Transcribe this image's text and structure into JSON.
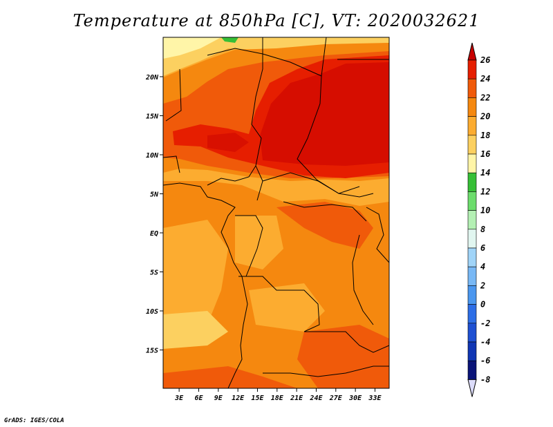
{
  "title": "Temperature at 850hPa [C], VT: 2020032621",
  "credit": "GrADS: IGES/COLA",
  "map": {
    "lat_ticks": [
      {
        "value": 20,
        "label": "20N"
      },
      {
        "value": 15,
        "label": "15N"
      },
      {
        "value": 10,
        "label": "10N"
      },
      {
        "value": 5,
        "label": "5N"
      },
      {
        "value": 0,
        "label": "EQ"
      },
      {
        "value": -5,
        "label": "5S"
      },
      {
        "value": -10,
        "label": "10S"
      },
      {
        "value": -15,
        "label": "15S"
      }
    ],
    "lon_ticks": [
      {
        "value": 3,
        "label": "3E"
      },
      {
        "value": 6,
        "label": "6E"
      },
      {
        "value": 9,
        "label": "9E"
      },
      {
        "value": 12,
        "label": "12E"
      },
      {
        "value": 15,
        "label": "15E"
      },
      {
        "value": 18,
        "label": "18E"
      },
      {
        "value": 21,
        "label": "21E"
      },
      {
        "value": 24,
        "label": "24E"
      },
      {
        "value": 27,
        "label": "27E"
      },
      {
        "value": 30,
        "label": "30E"
      },
      {
        "value": 33,
        "label": "33E"
      }
    ]
  },
  "colorbar": {
    "levels": [
      {
        "label": "26",
        "color": "#c80000"
      },
      {
        "label": "24",
        "color": "#e61e00"
      },
      {
        "label": "22",
        "color": "#f05a0a"
      },
      {
        "label": "20",
        "color": "#f5880f"
      },
      {
        "label": "18",
        "color": "#fcac30"
      },
      {
        "label": "16",
        "color": "#fcd060"
      },
      {
        "label": "14",
        "color": "#fff5a8"
      },
      {
        "label": "12",
        "color": "#36bf36"
      },
      {
        "label": "10",
        "color": "#6cdd6c"
      },
      {
        "label": "8",
        "color": "#b4f0b4"
      },
      {
        "label": "6",
        "color": "#e1f6f0"
      },
      {
        "label": "4",
        "color": "#a0d4f8"
      },
      {
        "label": "2",
        "color": "#78b8f5"
      },
      {
        "label": "0",
        "color": "#4b97ef"
      },
      {
        "label": "-2",
        "color": "#2d6ee6"
      },
      {
        "label": "-4",
        "color": "#1e50d2"
      },
      {
        "label": "-6",
        "color": "#1036b4"
      },
      {
        "label": "-8",
        "color": "#0a1478"
      }
    ],
    "top_color": "#c80000",
    "bottom_color": "#dcdcfa"
  },
  "colors": {
    "c26": "#c80000",
    "c24": "#e61e00",
    "c22": "#f05a0a",
    "c20": "#f5880f",
    "c18": "#fcac30",
    "c16": "#fcd060",
    "c14": "#fff5a8",
    "c12": "#36bf36"
  }
}
